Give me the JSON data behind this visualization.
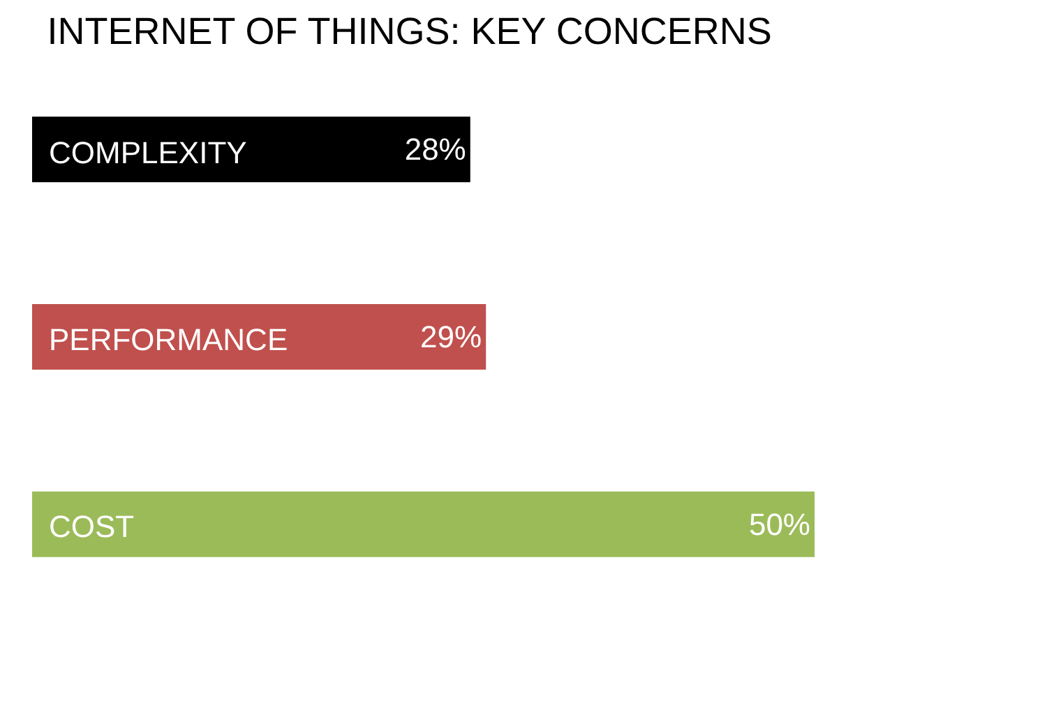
{
  "chart_data": {
    "type": "bar",
    "orientation": "horizontal",
    "title": "INTERNET OF THINGS: KEY CONCERNS",
    "categories": [
      "COMPLEXITY",
      "PERFORMANCE",
      "COST"
    ],
    "values": [
      28,
      29,
      50
    ],
    "value_labels": [
      "28%",
      "29%",
      "50%"
    ],
    "colors": [
      "#000000",
      "#c0504d",
      "#9bbb59"
    ],
    "tick_labels": false,
    "legend": false
  }
}
